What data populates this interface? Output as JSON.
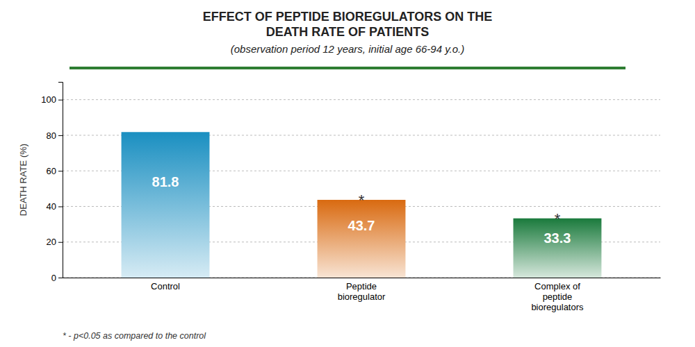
{
  "chart_data": {
    "type": "bar",
    "title": "EFFECT OF PEPTIDE BIOREGULATORS ON THE\nDEATH RATE OF PATIENTS",
    "subtitle": "(observation period 12 years, initial age 66-94 y.o.)",
    "y_label": "DEATH RATE (%)",
    "categories": [
      "Control",
      "Peptide\nbioregulator",
      "Complex of\npeptide\nbioregulators"
    ],
    "values": [
      81.8,
      43.7,
      33.3
    ],
    "colors": [
      "#1a8fc1",
      "#d96a10",
      "#1a7a3c"
    ],
    "ylim": [
      0,
      110
    ],
    "yticks": [
      0,
      20,
      40,
      60,
      80,
      100
    ],
    "grid": true,
    "data_labels": true,
    "annotations": [
      {
        "text": "*",
        "category_index": 1
      },
      {
        "text": "*",
        "category_index": 2
      }
    ],
    "footnote": "* - p<0.05 as compared to the control"
  }
}
